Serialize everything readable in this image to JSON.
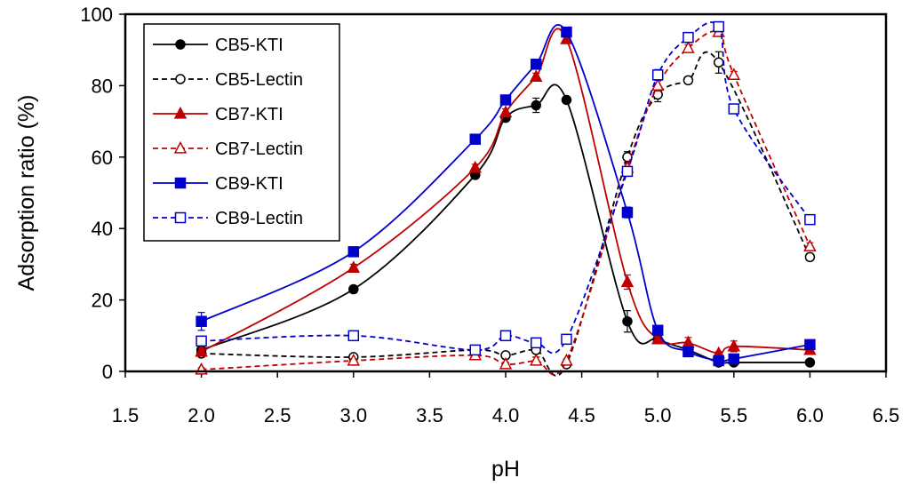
{
  "chart_data": {
    "type": "line",
    "xlabel": "pH",
    "ylabel": "Adsorption ratio (%)",
    "xlim": [
      1.5,
      6.5
    ],
    "ylim": [
      0,
      100
    ],
    "xticks": [
      "1.5",
      "2.0",
      "2.5",
      "3.0",
      "3.5",
      "4.0",
      "4.5",
      "5.0",
      "5.5",
      "6.0",
      "6.5"
    ],
    "xtick_values": [
      1.5,
      2.0,
      2.5,
      3.0,
      3.5,
      4.0,
      4.5,
      5.0,
      5.5,
      6.0,
      6.5
    ],
    "yticks": [
      "0",
      "20",
      "40",
      "60",
      "80",
      "100"
    ],
    "ytick_values": [
      0,
      20,
      40,
      60,
      80,
      100
    ],
    "grid": false,
    "legend_position": "top-left",
    "series": [
      {
        "name": "CB5-KTI",
        "color": "#000000",
        "dashed": false,
        "marker": "circle",
        "filled": true,
        "x": [
          2.0,
          3.0,
          3.8,
          4.0,
          4.2,
          4.4,
          4.8,
          5.0,
          5.2,
          5.4,
          5.5,
          6.0
        ],
        "y": [
          6,
          23,
          55,
          71,
          74.5,
          76,
          14,
          9,
          6,
          2.5,
          2.5,
          2.5
        ],
        "err": [
          1,
          1,
          1,
          1,
          2,
          0.8,
          3,
          1,
          0.5,
          0.5,
          0.5,
          0.5
        ]
      },
      {
        "name": "CB5-Lectin",
        "color": "#000000",
        "dashed": true,
        "marker": "circle",
        "filled": false,
        "x": [
          2.0,
          3.0,
          3.8,
          4.0,
          4.2,
          4.4,
          4.8,
          5.0,
          5.2,
          5.4,
          6.0
        ],
        "y": [
          5,
          4,
          6,
          4.5,
          6,
          2,
          60,
          77.5,
          81.5,
          86.5,
          32
        ],
        "err": [
          0.5,
          0.5,
          0.5,
          0.5,
          2,
          0.5,
          1.5,
          2,
          1,
          3,
          1
        ]
      },
      {
        "name": "CB7-KTI",
        "color": "#c00000",
        "dashed": false,
        "marker": "triangle",
        "filled": true,
        "x": [
          2.0,
          3.0,
          3.8,
          4.0,
          4.2,
          4.4,
          4.8,
          5.0,
          5.2,
          5.4,
          5.5,
          6.0
        ],
        "y": [
          5.5,
          29,
          57,
          72.5,
          82.5,
          93,
          25,
          9,
          8,
          5,
          7,
          6
        ],
        "err": [
          1,
          1,
          1,
          1,
          1,
          1,
          2,
          1,
          1.5,
          0.5,
          1.5,
          0.5
        ]
      },
      {
        "name": "CB7-Lectin",
        "color": "#c00000",
        "dashed": true,
        "marker": "triangle",
        "filled": false,
        "x": [
          2.0,
          3.0,
          3.8,
          4.0,
          4.2,
          4.4,
          4.8,
          5.0,
          5.2,
          5.4,
          5.5,
          6.0
        ],
        "y": [
          0.5,
          3,
          4.5,
          2,
          3,
          3,
          57,
          80,
          90.5,
          95,
          83,
          35
        ],
        "err": [
          0.5,
          0.5,
          0.5,
          0.5,
          1,
          0.5,
          1,
          1.5,
          1,
          1,
          1,
          1
        ]
      },
      {
        "name": "CB9-KTI",
        "color": "#0000cc",
        "dashed": false,
        "marker": "square",
        "filled": true,
        "x": [
          2.0,
          3.0,
          3.8,
          4.0,
          4.2,
          4.4,
          4.8,
          5.0,
          5.2,
          5.4,
          5.5,
          6.0
        ],
        "y": [
          14,
          33.5,
          65,
          76,
          86,
          95,
          44.5,
          11.5,
          5.5,
          3,
          3.5,
          7.5
        ],
        "err": [
          2.5,
          1,
          1,
          1,
          1,
          1,
          1.5,
          1,
          0.5,
          0.5,
          0.5,
          0.5
        ]
      },
      {
        "name": "CB9-Lectin",
        "color": "#0000cc",
        "dashed": true,
        "marker": "square",
        "filled": false,
        "x": [
          2.0,
          3.0,
          3.8,
          4.0,
          4.2,
          4.4,
          4.8,
          5.0,
          5.2,
          5.4,
          5.5,
          6.0
        ],
        "y": [
          8.5,
          10,
          6,
          10,
          8,
          9,
          56,
          83,
          93.5,
          96.5,
          73.5,
          42.5
        ],
        "err": [
          0.5,
          0.5,
          0.5,
          0.5,
          0.5,
          0.5,
          1,
          1.5,
          1,
          1,
          1,
          1
        ]
      }
    ]
  }
}
